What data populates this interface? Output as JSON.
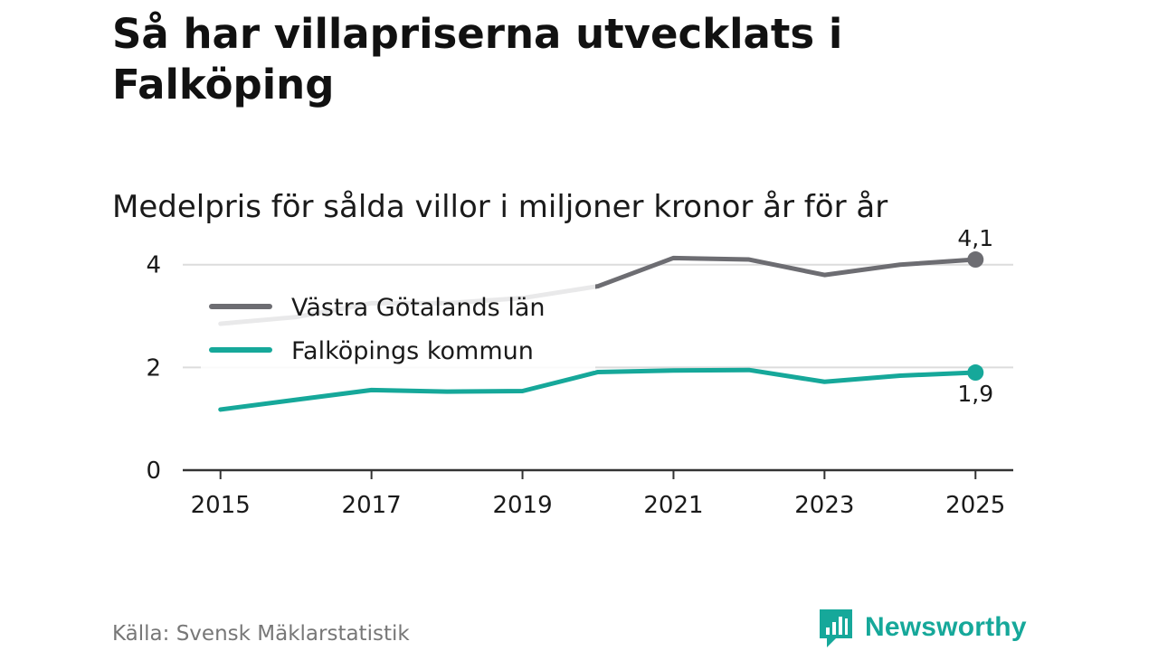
{
  "title": "Så har villapriserna utvecklats i Falköping",
  "subtitle": "Medelpris för sålda villor i miljoner kronor år för år",
  "source": "Källa: Svensk Mäklarstatistik",
  "brand": {
    "name": "Newsworthy",
    "color": "#16a89a"
  },
  "chart_data": {
    "type": "line",
    "title": "Så har villapriserna utvecklats i Falköping",
    "subtitle": "Medelpris för sålda villor i miljoner kronor år för år",
    "xlabel": "",
    "ylabel": "",
    "x": [
      2015,
      2016,
      2017,
      2018,
      2019,
      2020,
      2021,
      2022,
      2023,
      2024,
      2025
    ],
    "xticks": [
      "2015",
      "2017",
      "2019",
      "2021",
      "2023",
      "2025"
    ],
    "xtick_values": [
      2015,
      2017,
      2019,
      2021,
      2023,
      2025
    ],
    "yticks": [
      "0",
      "2",
      "4"
    ],
    "ytick_values": [
      0,
      2,
      4
    ],
    "ylim": [
      0,
      4.4
    ],
    "xlim": [
      2014.5,
      2025.5
    ],
    "grid": true,
    "legend_position": "top-left",
    "series": [
      {
        "name": "Västra Götalands län",
        "color": "#6d6d72",
        "values": [
          2.85,
          2.98,
          3.25,
          3.25,
          3.35,
          3.58,
          4.13,
          4.1,
          3.8,
          4.0,
          4.1
        ],
        "end_label": "4,1"
      },
      {
        "name": "Falköpings kommun",
        "color": "#16a89a",
        "values": [
          1.18,
          1.37,
          1.56,
          1.53,
          1.54,
          1.91,
          1.94,
          1.95,
          1.72,
          1.84,
          1.9
        ],
        "end_label": "1,9"
      }
    ]
  }
}
